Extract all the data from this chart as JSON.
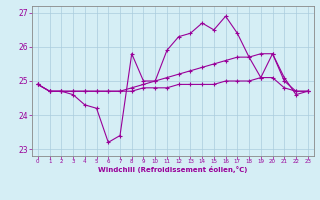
{
  "xlabel": "Windchill (Refroidissement éolien,°C)",
  "x": [
    0,
    1,
    2,
    3,
    4,
    5,
    6,
    7,
    8,
    9,
    10,
    11,
    12,
    13,
    14,
    15,
    16,
    17,
    18,
    19,
    20,
    21,
    22,
    23
  ],
  "line1": [
    24.9,
    24.7,
    24.7,
    24.6,
    24.3,
    24.2,
    23.2,
    23.4,
    25.8,
    25.0,
    25.0,
    25.9,
    26.3,
    26.4,
    26.7,
    26.5,
    26.9,
    26.4,
    25.7,
    25.1,
    25.8,
    25.1,
    24.6,
    24.7
  ],
  "line2": [
    24.9,
    24.7,
    24.7,
    24.7,
    24.7,
    24.7,
    24.7,
    24.7,
    24.8,
    24.9,
    25.0,
    25.1,
    25.2,
    25.3,
    25.4,
    25.5,
    25.6,
    25.7,
    25.7,
    25.8,
    25.8,
    25.0,
    24.7,
    24.7
  ],
  "line3": [
    24.9,
    24.7,
    24.7,
    24.7,
    24.7,
    24.7,
    24.7,
    24.7,
    24.7,
    24.8,
    24.8,
    24.8,
    24.9,
    24.9,
    24.9,
    24.9,
    25.0,
    25.0,
    25.0,
    25.1,
    25.1,
    24.8,
    24.7,
    24.7
  ],
  "line_color": "#990099",
  "bg_color": "#d5eef5",
  "grid_color": "#aaccdd",
  "axis_color": "#888888",
  "ylim": [
    22.8,
    27.2
  ],
  "yticks": [
    23,
    24,
    25,
    26,
    27
  ],
  "xticks": [
    0,
    1,
    2,
    3,
    4,
    5,
    6,
    7,
    8,
    9,
    10,
    11,
    12,
    13,
    14,
    15,
    16,
    17,
    18,
    19,
    20,
    21,
    22,
    23
  ]
}
